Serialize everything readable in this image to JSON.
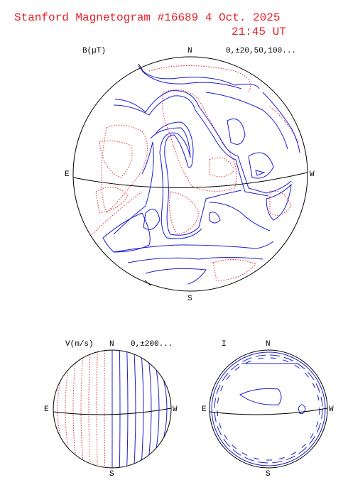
{
  "header": {
    "title": "Stanford Magnetogram #16689  4 Oct. 2025",
    "time": "21:45 UT"
  },
  "panels": [
    {
      "quantity": "B(μT)",
      "north": "N",
      "south": "S",
      "east": "E",
      "west": "W",
      "levels": "0,±20,50,100..."
    },
    {
      "quantity": "V(m/s)",
      "north": "N",
      "south": "S",
      "east": "E",
      "west": "W",
      "levels": "0,±200..."
    },
    {
      "quantity": "I",
      "north": "N",
      "south": "S",
      "east": "E",
      "west": "W"
    }
  ]
}
